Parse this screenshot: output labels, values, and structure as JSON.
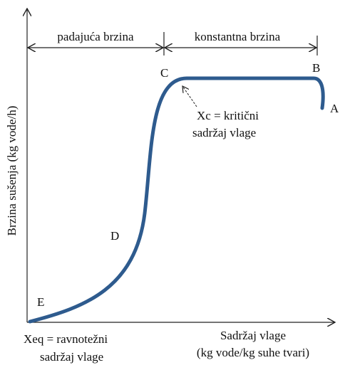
{
  "diagram": {
    "regions": {
      "falling": "padajuća brzina",
      "constant": "konstantna brzina"
    },
    "points": {
      "A": "A",
      "B": "B",
      "C": "C",
      "D": "D",
      "E": "E"
    },
    "critical": {
      "line1": "Xc = kritični",
      "line2": "sadržaj vlage"
    },
    "equilibrium": {
      "line1": "Xeq = ravnotežni",
      "line2": "sadržaj vlage"
    },
    "y_axis_label": "Brzina sušenja (kg vode/h)",
    "x_axis_label": {
      "line1": "Sadržaj vlage",
      "line2": "(kg vode/kg suhe tvari)"
    }
  }
}
